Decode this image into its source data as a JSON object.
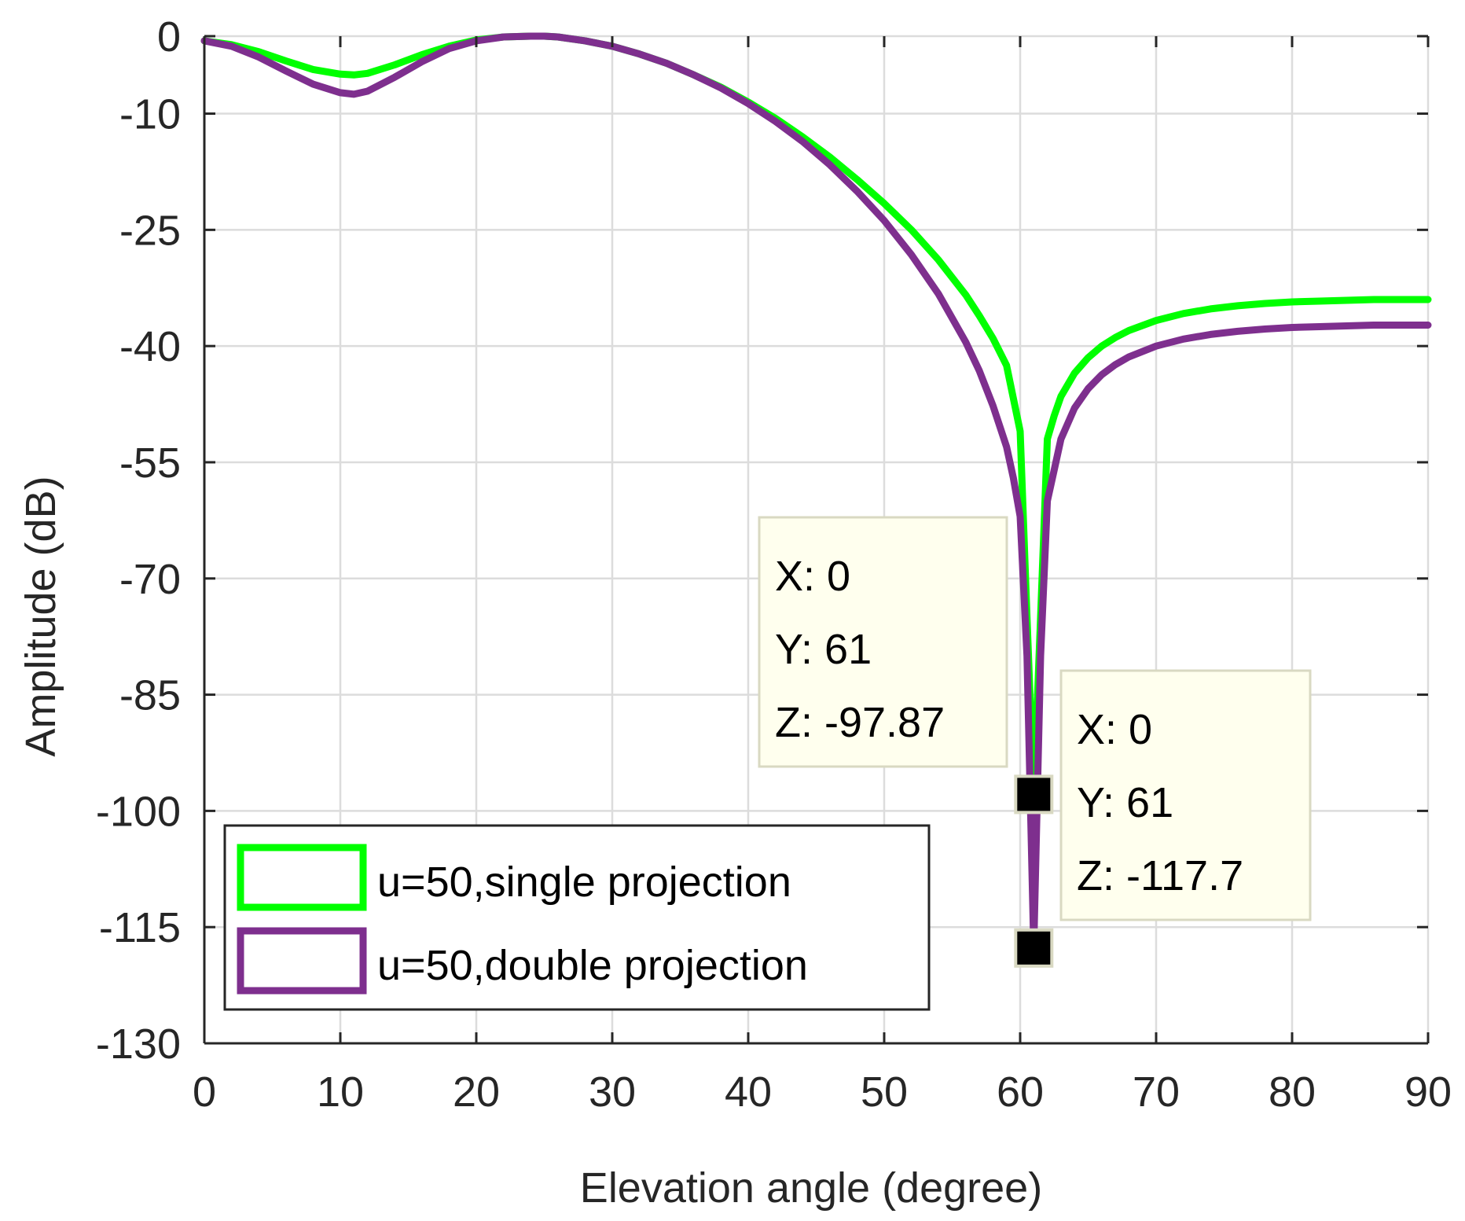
{
  "chart_data": {
    "type": "line",
    "title": "",
    "xlabel": "Elevation angle (degree)",
    "ylabel": "Amplitude (dB)",
    "xlim": [
      0,
      90
    ],
    "ylim": [
      -130,
      0
    ],
    "xticks": [
      0,
      10,
      20,
      30,
      40,
      50,
      60,
      70,
      80,
      90
    ],
    "xtick_labels": [
      "0",
      "10",
      "20",
      "30",
      "40",
      "50",
      "60",
      "70",
      "80",
      "90"
    ],
    "yticks": [
      0,
      -10,
      -25,
      -40,
      -55,
      -70,
      -85,
      -100,
      -115,
      -130
    ],
    "ytick_labels": [
      "0",
      "-10",
      "-25",
      "-40",
      "-55",
      "-70",
      "-85",
      "-100",
      "-115",
      "-130"
    ],
    "grid": true,
    "legend_position": "bottom-left",
    "series": [
      {
        "name": "u=50,single projection",
        "color": "#00ff00",
        "x": [
          0,
          2,
          4,
          6,
          8,
          10,
          11,
          12,
          14,
          16,
          18,
          20,
          22,
          24,
          25,
          26,
          28,
          30,
          32,
          34,
          36,
          38,
          40,
          42,
          44,
          46,
          48,
          50,
          52,
          54,
          56,
          57,
          58,
          59,
          60,
          60.5,
          61,
          61.5,
          62,
          62.5,
          63,
          64,
          65,
          66,
          67,
          68,
          70,
          72,
          74,
          76,
          78,
          80,
          82,
          84,
          86,
          88,
          90
        ],
        "y": [
          -0.6,
          -1.1,
          -2.0,
          -3.2,
          -4.3,
          -4.9,
          -5.0,
          -4.8,
          -3.7,
          -2.4,
          -1.3,
          -0.5,
          -0.1,
          0,
          0,
          -0.1,
          -0.6,
          -1.3,
          -2.3,
          -3.5,
          -5.0,
          -6.6,
          -8.5,
          -10.6,
          -13.0,
          -15.6,
          -18.5,
          -21.6,
          -25.0,
          -28.9,
          -33.4,
          -36.1,
          -39.0,
          -42.5,
          -51.0,
          -75.0,
          -97.87,
          -75.0,
          -52.0,
          -49.0,
          -46.5,
          -43.5,
          -41.5,
          -40.0,
          -38.9,
          -38.0,
          -36.7,
          -35.8,
          -35.2,
          -34.8,
          -34.5,
          -34.3,
          -34.2,
          -34.1,
          -34.0,
          -34.0,
          -34.0
        ]
      },
      {
        "name": "u=50,double projection",
        "color": "#7e2f8e",
        "x": [
          0,
          2,
          4,
          6,
          8,
          10,
          11,
          12,
          14,
          16,
          18,
          20,
          22,
          24,
          25,
          26,
          28,
          30,
          32,
          34,
          36,
          38,
          40,
          42,
          44,
          46,
          48,
          50,
          52,
          54,
          56,
          57,
          58,
          59,
          59.5,
          60,
          60.5,
          61,
          61.5,
          62,
          62.5,
          63,
          64,
          65,
          66,
          67,
          68,
          70,
          72,
          74,
          76,
          78,
          80,
          82,
          84,
          86,
          88,
          90
        ],
        "y": [
          -0.6,
          -1.3,
          -2.7,
          -4.5,
          -6.2,
          -7.3,
          -7.5,
          -7.1,
          -5.3,
          -3.3,
          -1.6,
          -0.6,
          -0.1,
          0,
          0,
          -0.1,
          -0.6,
          -1.3,
          -2.3,
          -3.5,
          -5.0,
          -6.7,
          -8.7,
          -11.0,
          -13.6,
          -16.6,
          -20.0,
          -23.8,
          -28.2,
          -33.3,
          -39.5,
          -43.2,
          -47.7,
          -53.0,
          -57.0,
          -62.0,
          -80.0,
          -117.7,
          -80.0,
          -60.0,
          -56.0,
          -52.0,
          -48.0,
          -45.5,
          -43.7,
          -42.4,
          -41.4,
          -40.0,
          -39.1,
          -38.5,
          -38.1,
          -37.8,
          -37.6,
          -37.5,
          -37.4,
          -37.3,
          -37.3,
          -37.3
        ]
      }
    ],
    "annotations": [
      {
        "x_label": "X: 0",
        "y_label": "Y: 61",
        "z_label": "Z: -97.87",
        "point": [
          61,
          -97.87
        ]
      },
      {
        "x_label": "X: 0",
        "y_label": "Y: 61",
        "z_label": "Z: -117.7",
        "point": [
          61,
          -117.7
        ]
      }
    ]
  }
}
